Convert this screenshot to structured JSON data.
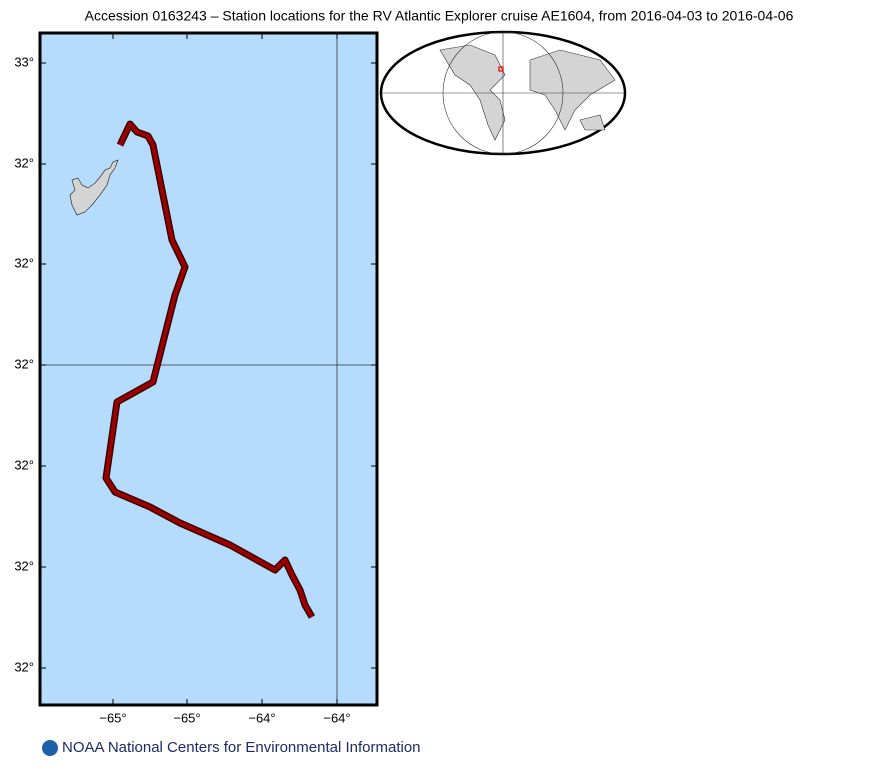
{
  "title": "Accession 0163243 – Station locations for the RV Atlantic Explorer cruise AE1604, from 2016-04-03 to 2016-04-06",
  "map": {
    "y_labels": [
      "33°",
      "32°",
      "32°",
      "32°",
      "32°",
      "32°",
      "32°"
    ],
    "x_labels": [
      "−65°",
      "−65°",
      "−64°",
      "−64°"
    ]
  },
  "footer": "NOAA National Centers for Environmental Information"
}
